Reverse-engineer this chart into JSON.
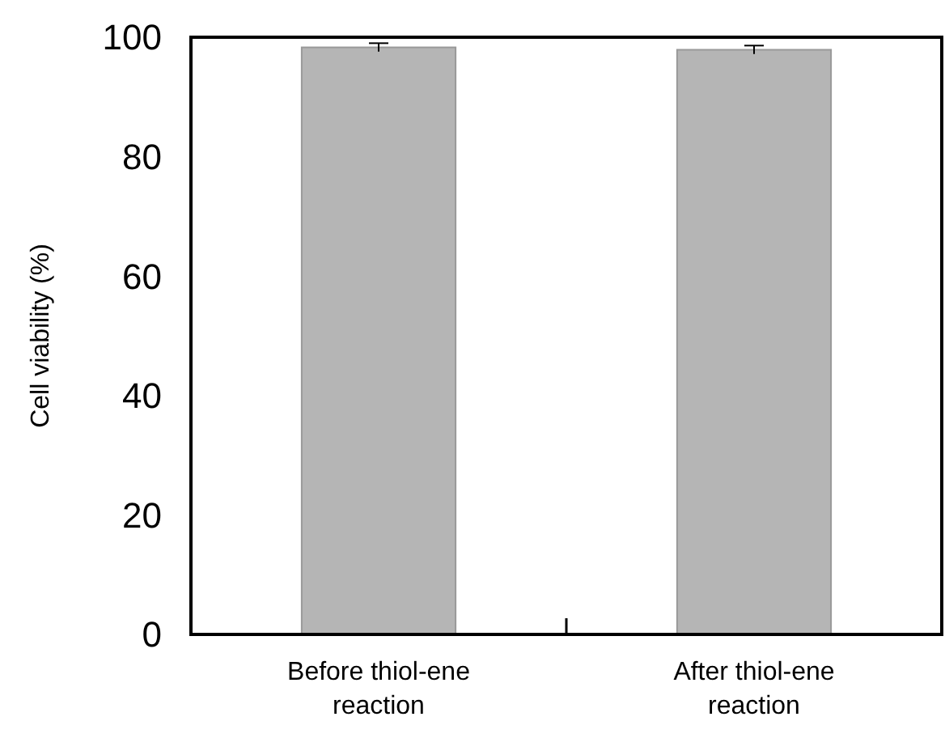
{
  "chart_data": {
    "type": "bar",
    "ylabel": "Cell viability (%)",
    "categories": [
      "Before thiol-ene reaction",
      "After thiol-ene reaction"
    ],
    "values": [
      98.3,
      97.9
    ],
    "errors": [
      0.7,
      0.7
    ],
    "color": "#b5b5b5",
    "ylim": [
      0,
      100
    ],
    "yticks": [
      0,
      20,
      40,
      60,
      80,
      100
    ],
    "grid": false
  }
}
